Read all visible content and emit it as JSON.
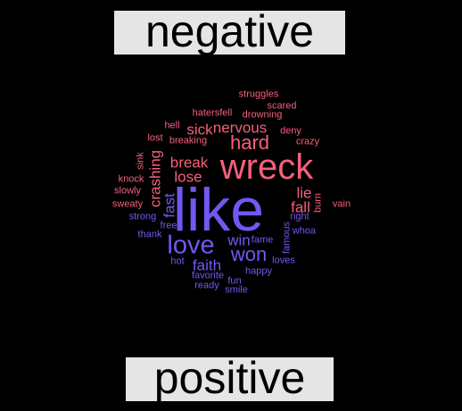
{
  "labels": {
    "negative": "negative",
    "positive": "positive"
  },
  "colors": {
    "background": "#000000",
    "label_bg": "#e5e5e5",
    "negative": "#f5607a",
    "positive": "#7357f2"
  },
  "words": [
    {
      "text": "struggles",
      "group": "negative",
      "size": 1
    },
    {
      "text": "scared",
      "group": "negative",
      "size": 1
    },
    {
      "text": "hatersfell",
      "group": "negative",
      "size": 1
    },
    {
      "text": "drowning",
      "group": "negative",
      "size": 1
    },
    {
      "text": "hell",
      "group": "negative",
      "size": 1
    },
    {
      "text": "deny",
      "group": "negative",
      "size": 1
    },
    {
      "text": "sick",
      "group": "negative",
      "size": 2
    },
    {
      "text": "nervous",
      "group": "negative",
      "size": 2
    },
    {
      "text": "lost",
      "group": "negative",
      "size": 1
    },
    {
      "text": "breaking",
      "group": "negative",
      "size": 1
    },
    {
      "text": "crazy",
      "group": "negative",
      "size": 1
    },
    {
      "text": "hard",
      "group": "negative",
      "size": 3
    },
    {
      "text": "break",
      "group": "negative",
      "size": 2
    },
    {
      "text": "wreck",
      "group": "negative",
      "size": 5
    },
    {
      "text": "lose",
      "group": "negative",
      "size": 2
    },
    {
      "text": "sink",
      "group": "negative",
      "size": 1,
      "vertical": true
    },
    {
      "text": "crashing",
      "group": "negative",
      "size": 2,
      "vertical": true
    },
    {
      "text": "knock",
      "group": "negative",
      "size": 1
    },
    {
      "text": "slowly",
      "group": "negative",
      "size": 1
    },
    {
      "text": "sweaty",
      "group": "negative",
      "size": 1
    },
    {
      "text": "lie",
      "group": "negative",
      "size": 2
    },
    {
      "text": "burn",
      "group": "negative",
      "size": 1,
      "vertical": true
    },
    {
      "text": "fall",
      "group": "negative",
      "size": 2
    },
    {
      "text": "vain",
      "group": "negative",
      "size": 1
    },
    {
      "text": "fast",
      "group": "positive",
      "size": 2,
      "vertical": true
    },
    {
      "text": "like",
      "group": "positive",
      "size": 6
    },
    {
      "text": "strong",
      "group": "positive",
      "size": 1
    },
    {
      "text": "right",
      "group": "positive",
      "size": 1
    },
    {
      "text": "free",
      "group": "positive",
      "size": 1
    },
    {
      "text": "whoa",
      "group": "positive",
      "size": 1
    },
    {
      "text": "thank",
      "group": "positive",
      "size": 1
    },
    {
      "text": "love",
      "group": "positive",
      "size": 4
    },
    {
      "text": "win",
      "group": "positive",
      "size": 2
    },
    {
      "text": "fame",
      "group": "positive",
      "size": 1
    },
    {
      "text": "famous",
      "group": "positive",
      "size": 1,
      "vertical": true
    },
    {
      "text": "won",
      "group": "positive",
      "size": 3
    },
    {
      "text": "hot",
      "group": "positive",
      "size": 1
    },
    {
      "text": "faith",
      "group": "positive",
      "size": 2
    },
    {
      "text": "loves",
      "group": "positive",
      "size": 1
    },
    {
      "text": "happy",
      "group": "positive",
      "size": 1
    },
    {
      "text": "favorite",
      "group": "positive",
      "size": 1
    },
    {
      "text": "fun",
      "group": "positive",
      "size": 1
    },
    {
      "text": "ready",
      "group": "positive",
      "size": 1
    },
    {
      "text": "smile",
      "group": "positive",
      "size": 1
    }
  ]
}
